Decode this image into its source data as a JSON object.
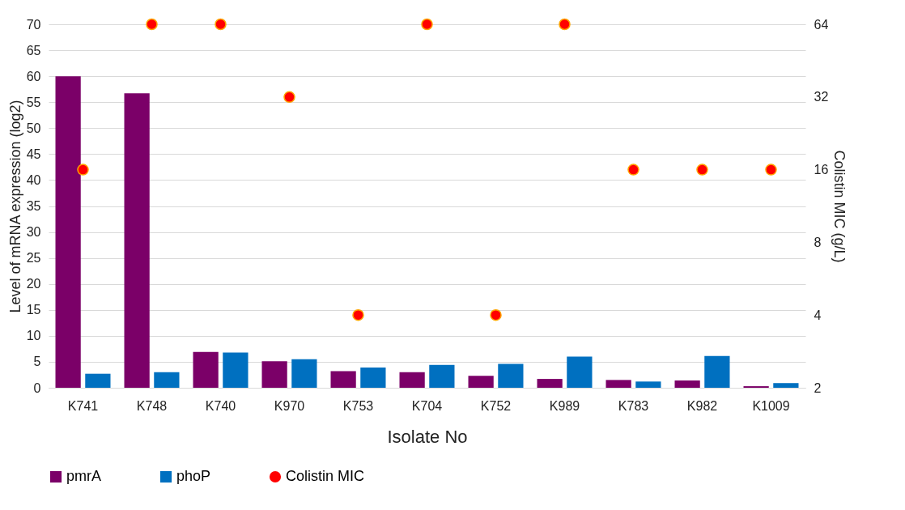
{
  "chart_data": {
    "type": "bar",
    "xlabel": "Isolate No",
    "ylabel": "Level of mRNA expression (log2)",
    "y2label": "Colistin MIC (g/L)",
    "categories": [
      "K741",
      "K748",
      "K740",
      "K970",
      "K753",
      "K704",
      "K752",
      "K989",
      "K783",
      "K982",
      "K1009"
    ],
    "series": [
      {
        "name": "pmrA",
        "color": "#7b0068",
        "values": [
          60,
          56.7,
          6.9,
          5.1,
          3.2,
          3.0,
          2.3,
          1.7,
          1.5,
          1.4,
          0.3
        ]
      },
      {
        "name": "phoP",
        "color": "#0070c0",
        "values": [
          2.7,
          3.0,
          6.8,
          5.5,
          3.9,
          4.4,
          4.6,
          6.0,
          1.2,
          6.1,
          0.9
        ]
      },
      {
        "name": "Colistin MIC",
        "type": "scatter",
        "axis": "y2",
        "color": "#ff0000",
        "marker": "circle",
        "values": [
          16,
          64,
          64,
          32,
          4,
          64,
          4,
          64,
          16,
          16,
          16
        ]
      }
    ],
    "ylim": [
      0,
      70
    ],
    "yticks": [
      0,
      5,
      10,
      15,
      20,
      25,
      30,
      35,
      40,
      45,
      50,
      55,
      60,
      65,
      70
    ],
    "y2lim": [
      2,
      64
    ],
    "y2ticks": [
      2,
      4,
      8,
      16,
      32,
      64
    ],
    "log": "y2",
    "grid": "y",
    "legend": "bottom"
  }
}
